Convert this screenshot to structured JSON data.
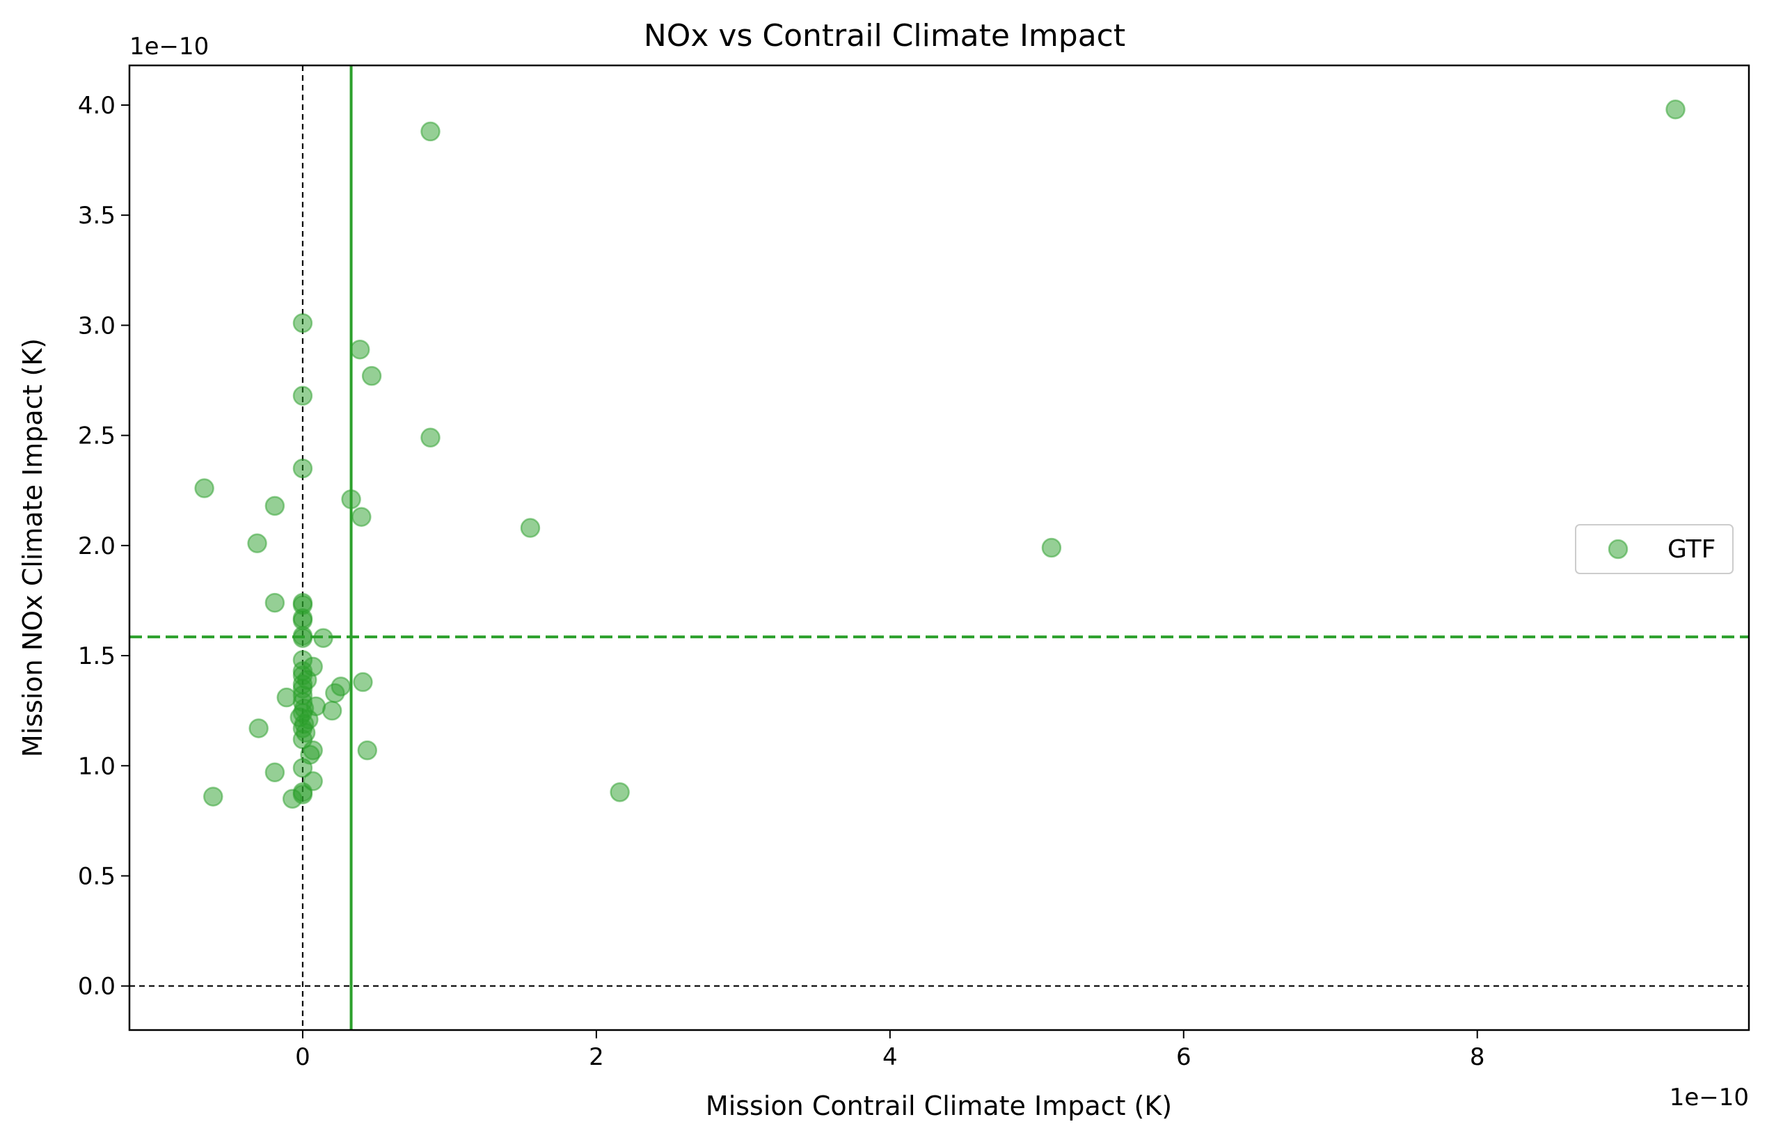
{
  "chart_data": {
    "type": "scatter",
    "title": "NOx vs Contrail Climate Impact",
    "xlabel": "Mission Contrail Climate Impact (K)",
    "ylabel": "Mission NOx Climate Impact (K)",
    "x_offset_label": "1e−10",
    "y_offset_label": "1e−10",
    "xlim": [
      -1.18,
      9.85
    ],
    "ylim": [
      -0.2,
      4.18
    ],
    "xticks": [
      0,
      2,
      4,
      6,
      8
    ],
    "xtick_labels": [
      "0",
      "2",
      "4",
      "6",
      "8"
    ],
    "yticks": [
      0.0,
      0.5,
      1.0,
      1.5,
      2.0,
      2.5,
      3.0,
      3.5,
      4.0
    ],
    "ytick_labels": [
      "0.0",
      "0.5",
      "1.0",
      "1.5",
      "2.0",
      "2.5",
      "3.0",
      "3.5",
      "4.0"
    ],
    "grid": false,
    "legend_position": "center-right",
    "series": [
      {
        "name": "GTF",
        "color": "#2ca02c",
        "alpha": 0.5,
        "points": [
          [
            9.35,
            3.98
          ],
          [
            0.87,
            3.88
          ],
          [
            0.0,
            3.01
          ],
          [
            0.39,
            2.89
          ],
          [
            0.47,
            2.77
          ],
          [
            0.0,
            2.68
          ],
          [
            0.87,
            2.49
          ],
          [
            0.0,
            2.35
          ],
          [
            -0.67,
            2.26
          ],
          [
            0.33,
            2.21
          ],
          [
            -0.19,
            2.18
          ],
          [
            0.4,
            2.13
          ],
          [
            1.55,
            2.08
          ],
          [
            5.1,
            1.99
          ],
          [
            -0.31,
            2.01
          ],
          [
            -0.19,
            1.74
          ],
          [
            0.0,
            1.74
          ],
          [
            0.0,
            1.73
          ],
          [
            0.0,
            1.67
          ],
          [
            0.0,
            1.66
          ],
          [
            0.0,
            1.59
          ],
          [
            0.0,
            1.58
          ],
          [
            0.14,
            1.58
          ],
          [
            0.0,
            1.48
          ],
          [
            0.07,
            1.45
          ],
          [
            0.0,
            1.43
          ],
          [
            0.0,
            1.41
          ],
          [
            0.03,
            1.39
          ],
          [
            0.41,
            1.38
          ],
          [
            0.0,
            1.37
          ],
          [
            0.26,
            1.36
          ],
          [
            0.0,
            1.35
          ],
          [
            0.22,
            1.33
          ],
          [
            0.0,
            1.32
          ],
          [
            -0.11,
            1.31
          ],
          [
            0.0,
            1.29
          ],
          [
            0.09,
            1.27
          ],
          [
            0.01,
            1.26
          ],
          [
            0.2,
            1.25
          ],
          [
            0.0,
            1.24
          ],
          [
            -0.02,
            1.22
          ],
          [
            0.04,
            1.21
          ],
          [
            0.01,
            1.19
          ],
          [
            0.0,
            1.17
          ],
          [
            -0.3,
            1.17
          ],
          [
            0.02,
            1.15
          ],
          [
            0.0,
            1.12
          ],
          [
            0.07,
            1.07
          ],
          [
            0.44,
            1.07
          ],
          [
            0.05,
            1.05
          ],
          [
            0.0,
            0.99
          ],
          [
            -0.19,
            0.97
          ],
          [
            0.07,
            0.93
          ],
          [
            2.16,
            0.88
          ],
          [
            0.0,
            0.88
          ],
          [
            -0.61,
            0.86
          ],
          [
            0.0,
            0.87
          ],
          [
            -0.07,
            0.85
          ]
        ]
      }
    ],
    "reference_lines": [
      {
        "orientation": "vertical",
        "value": 0.0,
        "style": "dashed",
        "color": "#000000"
      },
      {
        "orientation": "horizontal",
        "value": 0.0,
        "style": "dashed",
        "color": "#000000"
      },
      {
        "orientation": "vertical",
        "value": 0.33,
        "style": "solid",
        "color": "#2ca02c"
      },
      {
        "orientation": "horizontal",
        "value": 1.585,
        "style": "dashed",
        "color": "#2ca02c"
      }
    ]
  }
}
